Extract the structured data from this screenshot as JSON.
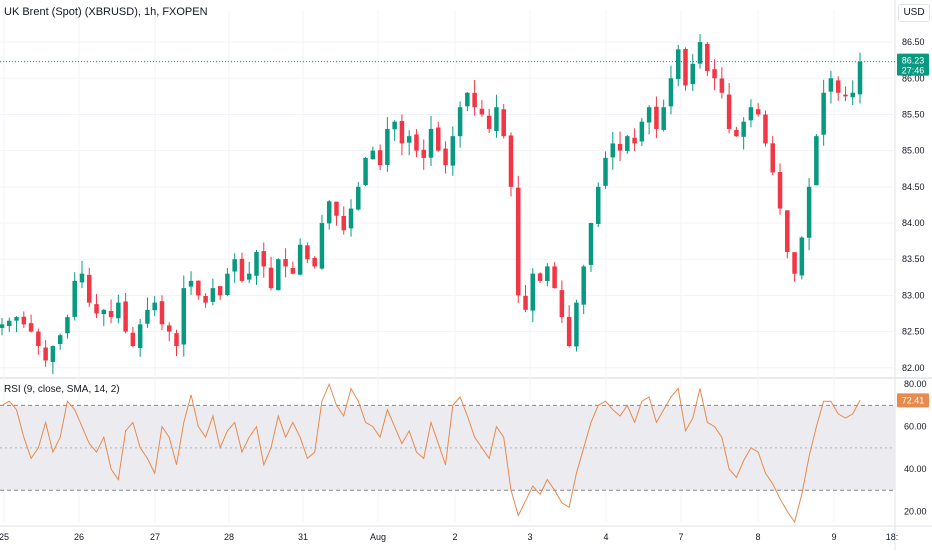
{
  "header": {
    "title": "UK Brent (Spot) (XBRUSD), 1h, FXOPEN",
    "currency": "USD"
  },
  "rsi_panel": {
    "label": "RSI (9, close, SMA, 14, 2)"
  },
  "price_tag": {
    "value": "86.23",
    "countdown": "27:46"
  },
  "rsi_tag": {
    "value": "72.41"
  },
  "colors": {
    "up": "#089981",
    "down": "#f23645",
    "rsi_line": "#e8894d",
    "band_fill": "#e9e9ed",
    "last_price_line": "#089981",
    "grid": "#f0f3fa"
  },
  "chart_data": [
    {
      "type": "candlestick",
      "title": "UK Brent (Spot) (XBRUSD), 1h, FXOPEN",
      "x_ticks": [
        "25",
        "26",
        "27",
        "28",
        "31",
        "Aug",
        "2",
        "3",
        "4",
        "7",
        "8",
        "9",
        "18:"
      ],
      "y_ticks": [
        82.0,
        82.5,
        83.0,
        83.5,
        84.0,
        84.5,
        85.0,
        85.5,
        86.0,
        86.5
      ],
      "ylim": [
        81.9,
        86.75
      ],
      "last_price": 86.23,
      "series": [
        {
          "close_path": [
            82.6,
            82.65,
            82.7,
            82.6,
            82.5,
            82.3,
            82.1,
            82.3,
            82.45,
            82.7,
            83.2,
            83.3,
            82.9,
            82.75,
            82.8,
            82.7,
            82.9,
            82.5,
            82.3,
            82.6,
            82.8,
            82.9,
            82.6,
            82.5,
            82.3,
            83.1,
            83.2,
            83.0,
            82.9,
            83.1,
            83.0,
            83.3,
            83.5,
            83.2,
            83.3,
            83.6,
            83.4,
            83.1,
            83.5,
            83.4,
            83.3,
            83.7,
            83.5,
            83.4,
            84.0,
            84.3,
            84.1,
            83.9,
            84.2,
            84.5,
            84.9,
            85.0,
            84.8,
            85.3,
            85.4,
            85.1,
            85.2,
            85.0,
            84.9,
            85.3,
            85.0,
            84.8,
            85.2,
            85.6,
            85.8,
            85.6,
            85.5,
            85.3,
            85.6,
            85.2,
            84.5,
            83.0,
            82.8,
            83.3,
            83.2,
            83.4,
            83.1,
            82.7,
            82.3,
            82.9,
            83.4,
            84.0,
            84.5,
            84.9,
            85.1,
            85.0,
            85.2,
            85.1,
            85.4,
            85.6,
            85.3,
            85.6,
            86.0,
            86.4,
            85.9,
            86.2,
            86.5,
            86.1,
            86.0,
            85.8,
            85.3,
            85.2,
            85.4,
            85.6,
            85.5,
            85.1,
            84.7,
            84.2,
            83.6,
            83.3,
            83.8,
            84.5,
            85.2,
            85.8,
            86.0,
            85.8,
            85.75,
            85.8,
            86.23
          ],
          "high": 86.5,
          "low": 81.95
        }
      ]
    },
    {
      "type": "line",
      "title": "RSI (9, close, SMA, 14, 2)",
      "y_ticks": [
        20.0,
        40.0,
        60.0,
        80.0
      ],
      "ylim": [
        15,
        82
      ],
      "bands": [
        30,
        50,
        70
      ],
      "last_value": 72.41,
      "series": [
        {
          "name": "",
          "values": [
            70,
            72,
            68,
            55,
            45,
            50,
            62,
            48,
            55,
            72,
            68,
            60,
            52,
            48,
            55,
            40,
            35,
            58,
            62,
            50,
            45,
            38,
            60,
            55,
            42,
            62,
            75,
            60,
            55,
            65,
            50,
            58,
            62,
            48,
            55,
            60,
            42,
            50,
            65,
            55,
            62,
            55,
            45,
            48,
            72,
            80,
            70,
            65,
            78,
            72,
            62,
            60,
            55,
            68,
            60,
            52,
            58,
            48,
            45,
            62,
            52,
            42,
            70,
            74,
            65,
            55,
            50,
            45,
            60,
            55,
            30,
            18,
            25,
            32,
            28,
            35,
            30,
            24,
            22,
            38,
            50,
            62,
            70,
            72,
            68,
            65,
            70,
            62,
            72,
            74,
            62,
            68,
            74,
            78,
            58,
            64,
            78,
            62,
            60,
            55,
            40,
            36,
            44,
            50,
            48,
            38,
            33,
            26,
            20,
            15,
            28,
            46,
            60,
            72,
            72,
            66,
            64,
            66,
            72.41
          ]
        }
      ]
    }
  ]
}
